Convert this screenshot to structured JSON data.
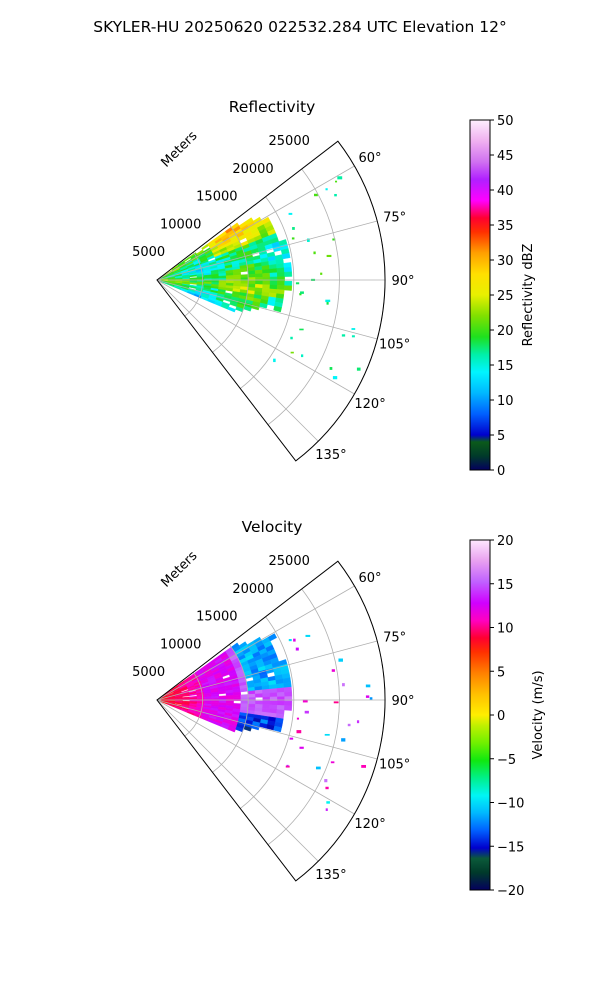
{
  "figure": {
    "suptitle": "SKYLER-HU  20250620  022532.284 UTC Elevation 12°"
  },
  "chart_data": [
    {
      "type": "heatmap",
      "subtype": "polar-sector (PPI radar scan)",
      "title": "Reflectivity",
      "radial_label": "Meters",
      "radial_ticks": [
        5000,
        10000,
        15000,
        20000,
        25000
      ],
      "radial_range_m": [
        0,
        25000
      ],
      "angle_ticks_deg": [
        60,
        75,
        90,
        105,
        120,
        135
      ],
      "angle_range_deg": [
        52.5,
        142.5
      ],
      "grid": true,
      "colorbar": {
        "label": "Reflectivity dBZ",
        "min": 0,
        "max": 50,
        "ticks": [
          0,
          5,
          10,
          15,
          20,
          25,
          30,
          35,
          40,
          45,
          50
        ]
      },
      "echo_summary": "Main echo region from radar out to ~12000-15000 m between ~55° and ~112°, values mostly 15-25 dBZ, up to ~25-28 dBZ near 60-65°; scattered weak returns (~15-20 dBZ) out to ~22000 m"
    },
    {
      "type": "heatmap",
      "subtype": "polar-sector (PPI radar scan)",
      "title": "Velocity",
      "radial_label": "Meters",
      "radial_ticks": [
        5000,
        10000,
        15000,
        20000,
        25000
      ],
      "radial_range_m": [
        0,
        25000
      ],
      "angle_ticks_deg": [
        60,
        75,
        90,
        105,
        120,
        135
      ],
      "angle_range_deg": [
        52.5,
        142.5
      ],
      "grid": true,
      "colorbar": {
        "label": "Velocity (m/s)",
        "min": -20,
        "max": 20,
        "ticks": [
          -20,
          -15,
          -10,
          -5,
          0,
          5,
          10,
          15,
          20
        ]
      },
      "echo_summary": "Near range (<8000 m) mostly +10 to +13 m/s (red/magenta), mid range +13 to +17 m/s (magenta/purple), far range toward 55-85° around -12 m/s (cyan), patches near -15 m/s around 100-110°"
    }
  ]
}
